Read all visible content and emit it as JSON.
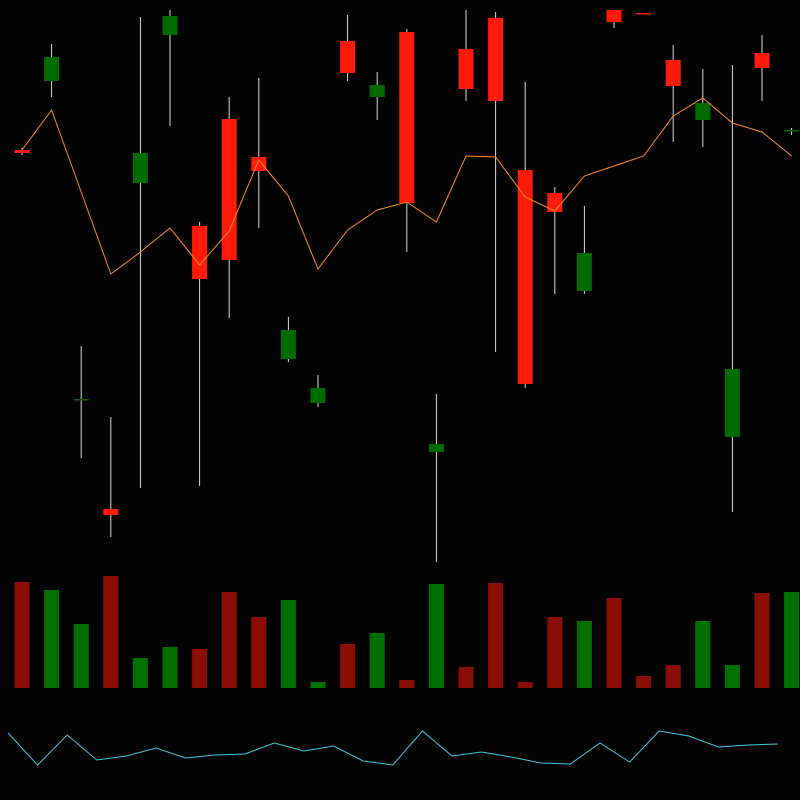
{
  "chart_data": {
    "type": "candlestick",
    "up_color": "#ff1a0a",
    "down_color": "#006b00",
    "vol_up_color": "#8b0e06",
    "vol_down_color": "#007000",
    "wick_color": "#d8d8d8",
    "ylim": [
      0,
      560
    ],
    "open": [
      407,
      503,
      161,
      45,
      407,
      544,
      281,
      300,
      389,
      230,
      172,
      487,
      475,
      357,
      116,
      471,
      459,
      176,
      348,
      307,
      538,
      546,
      474,
      457,
      191,
      492,
      430
    ],
    "close": [
      410,
      479,
      160,
      51,
      377,
      525,
      334,
      441,
      403,
      201,
      157,
      519,
      463,
      528,
      108,
      511,
      542,
      390,
      367,
      269,
      550,
      547,
      500,
      440,
      123,
      507,
      429
    ],
    "high": [
      412,
      516,
      214,
      143,
      543,
      550,
      338,
      463,
      482,
      243,
      185,
      545,
      488,
      531,
      166,
      550,
      548,
      478,
      373,
      354,
      550,
      547,
      515,
      491,
      495,
      525,
      432
    ],
    "low": [
      405,
      463,
      102,
      23,
      72,
      434,
      74,
      242,
      332,
      198,
      153,
      479,
      440,
      308,
      -2,
      459,
      208,
      172,
      266,
      266,
      532,
      546,
      418,
      413,
      48,
      459,
      425
    ],
    "ma": {
      "color": "#ff8c1a",
      "values": [
        410,
        450,
        368,
        286,
        308,
        332,
        295,
        329,
        400,
        364,
        291,
        330,
        350,
        358,
        338,
        404,
        403,
        363,
        349,
        384,
        394,
        404,
        444,
        462,
        437,
        428,
        404
      ]
    },
    "volume": {
      "ylim": [
        0,
        120
      ],
      "values": [
        106,
        98,
        64,
        112,
        30,
        41,
        39,
        96,
        71,
        88,
        6,
        44,
        55,
        8,
        104,
        21,
        105,
        6,
        71,
        67,
        90,
        12,
        23,
        67,
        23,
        95,
        96
      ]
    },
    "indicator": {
      "color": "#3cc8e6",
      "ylim": [
        20,
        90
      ],
      "values": [
        67,
        35,
        65,
        40,
        44,
        52,
        42,
        45,
        46,
        57,
        49,
        54,
        39,
        35,
        69,
        44,
        48,
        43,
        37,
        36,
        57,
        38,
        69,
        64,
        53,
        55,
        56
      ]
    }
  }
}
